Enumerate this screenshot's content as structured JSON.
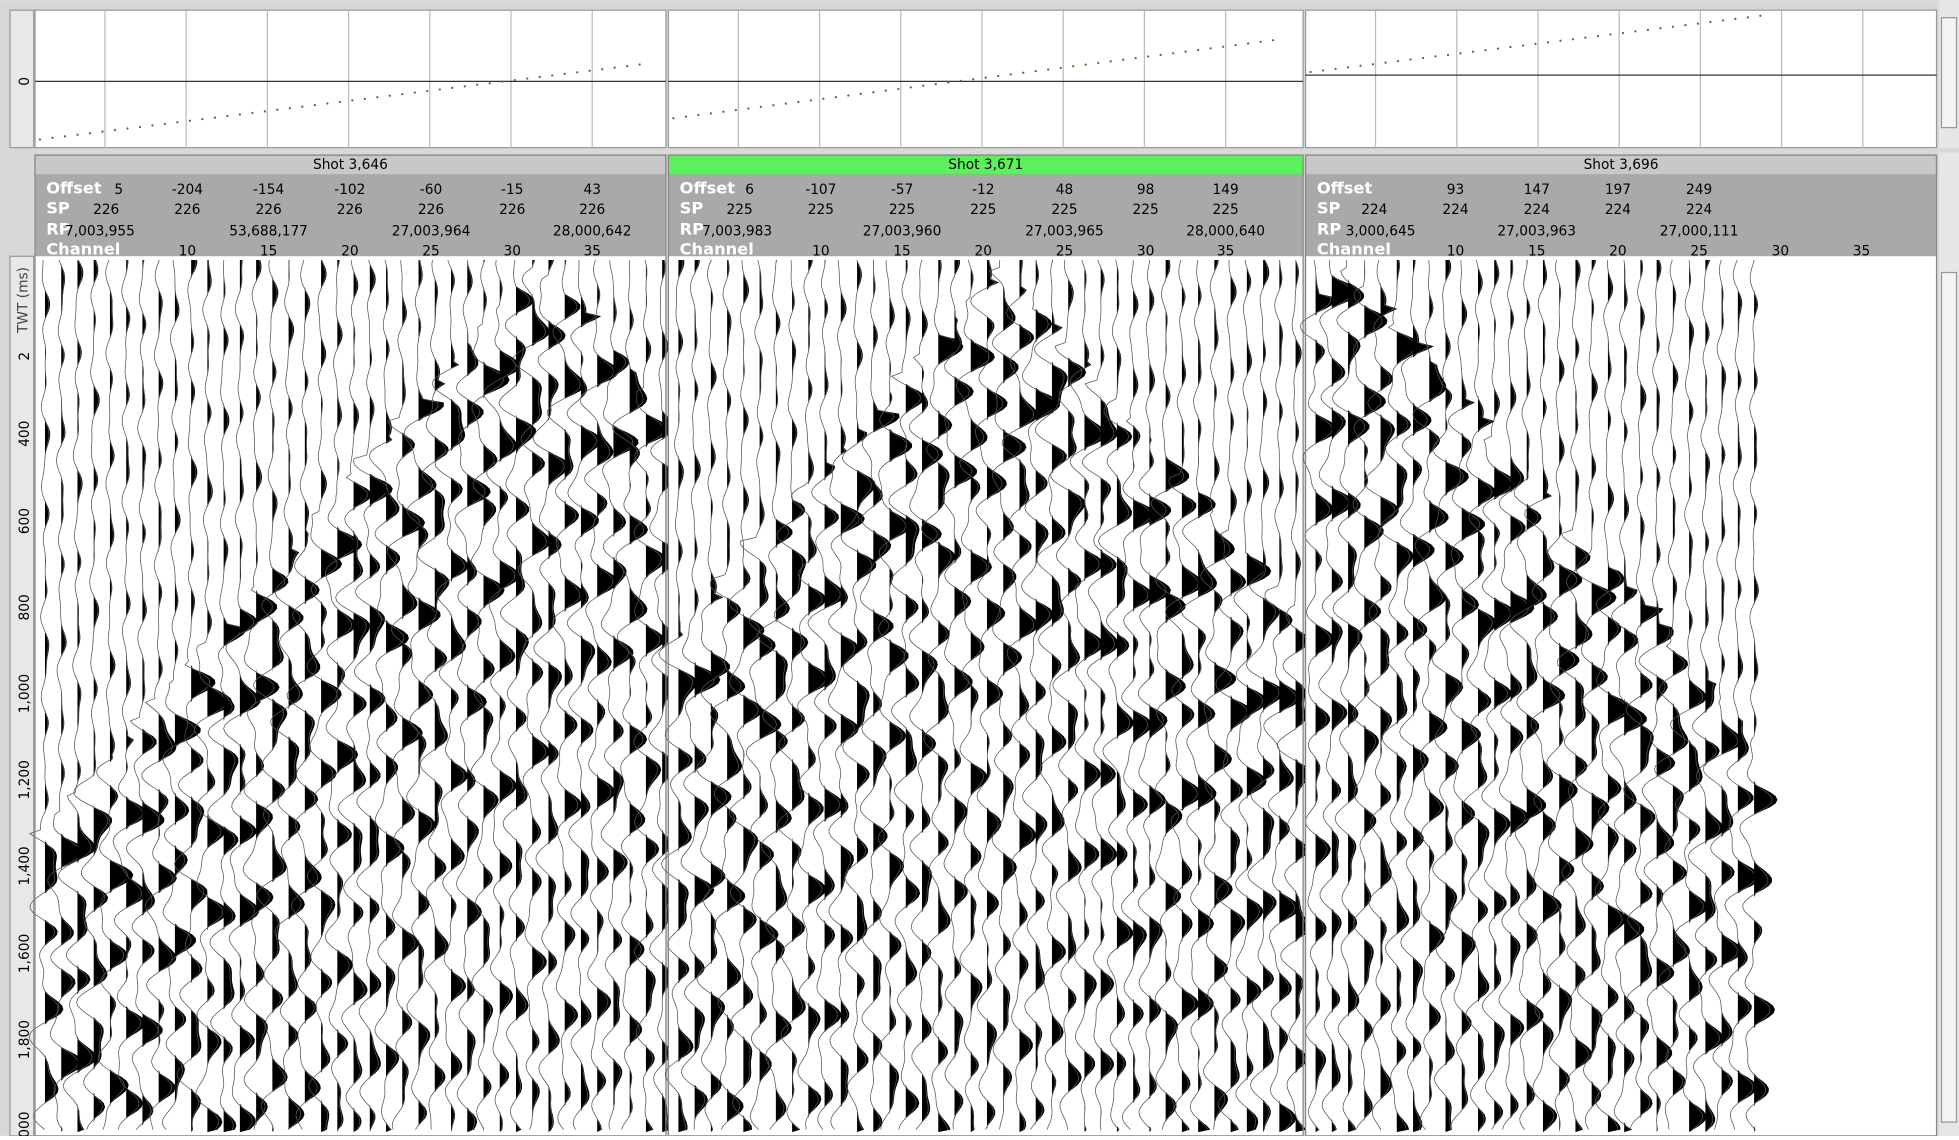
{
  "top_axis": {
    "labels": [
      "0"
    ]
  },
  "time_axis": {
    "title": "TWT (ms)",
    "labels": [
      "2",
      "400",
      "600",
      "800",
      "1,000",
      "1,200",
      "1,400",
      "1,600",
      "1,800",
      "000"
    ]
  },
  "header_labels": [
    "Offset",
    "SP",
    "RP",
    "Channel"
  ],
  "panels": [
    {
      "title": "Shot 3,646",
      "selected": false,
      "offset": [
        "5",
        "-204",
        "-154",
        "-102",
        "-60",
        "-15",
        "43"
      ],
      "sp": [
        "226",
        "226",
        "226",
        "226",
        "226",
        "226",
        "226"
      ],
      "rp": [
        "7,003,955",
        "53,688,177",
        "27,003,964",
        "28,000,642"
      ],
      "channel": [
        "10",
        "15",
        "20",
        "25",
        "30",
        "35"
      ]
    },
    {
      "title": "Shot 3,671",
      "selected": true,
      "offset": [
        "6",
        "-107",
        "-57",
        "-12",
        "48",
        "98",
        "149"
      ],
      "sp": [
        "225",
        "225",
        "225",
        "225",
        "225",
        "225",
        "225"
      ],
      "rp": [
        "7,003,983",
        "27,003,960",
        "27,003,965",
        "28,000,640"
      ],
      "channel": [
        "10",
        "15",
        "20",
        "25",
        "30",
        "35"
      ]
    },
    {
      "title": "Shot 3,696",
      "selected": false,
      "offset": [
        "93",
        "147",
        "197",
        "249"
      ],
      "sp": [
        "224",
        "224",
        "224",
        "224",
        "224"
      ],
      "rp": [
        "3,000,645",
        "27,003,963",
        "27,000,111"
      ],
      "channel": [
        "10",
        "15",
        "20",
        "25",
        "30",
        "35"
      ]
    }
  ]
}
